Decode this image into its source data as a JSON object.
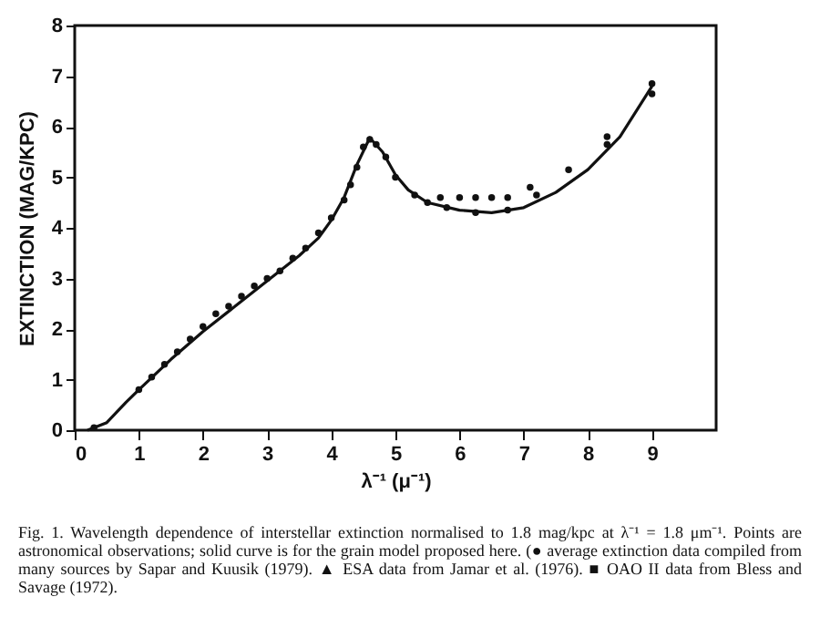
{
  "chart_data": {
    "type": "line",
    "xlabel": "λ⁻¹ (μ⁻¹)",
    "ylabel": "EXTINCTION (MAG/KPC)",
    "xlim": [
      0,
      10
    ],
    "ylim": [
      0,
      8
    ],
    "xticks": [
      0,
      1,
      2,
      3,
      4,
      5,
      6,
      7,
      8,
      9
    ],
    "yticks": [
      0,
      1,
      2,
      3,
      4,
      5,
      6,
      7,
      8
    ],
    "grid": false,
    "annotations": [
      "Fig. 1.  Wavelength dependence of interstellar extinction normalised to 1.8 mag/kpc at λ⁻¹ = 1.8 μm⁻¹. Points are astronomical observations; solid curve is for the grain model proposed here. (● average extinction data compiled from many sources by Sapar and Kuusik (1979). ▲ ESA data from Jamar et al. (1976). ■ OAO II data from Bless and Savage (1972)."
    ],
    "series": [
      {
        "color": "#111111",
        "line_style": "solid",
        "x": [
          0.2,
          0.5,
          0.8,
          1,
          1.5,
          2,
          2.5,
          3,
          3.5,
          3.8,
          4,
          4.2,
          4.4,
          4.6,
          4.8,
          5,
          5.2,
          5.5,
          6,
          6.5,
          7,
          7.5,
          8,
          8.5,
          9
        ],
        "values": [
          0,
          0.15,
          0.55,
          0.8,
          1.4,
          1.95,
          2.45,
          2.95,
          3.45,
          3.8,
          4.15,
          4.6,
          5.25,
          5.78,
          5.5,
          5.05,
          4.75,
          4.5,
          4.35,
          4.3,
          4.4,
          4.7,
          5.15,
          5.8,
          6.8
        ]
      },
      {
        "type": "scatter",
        "color": "#111111",
        "marker": "circle",
        "x": [
          0.3,
          1,
          1.2,
          1.4,
          1.6,
          1.8,
          2,
          2.2,
          2.4,
          2.6,
          2.8,
          3,
          3.2,
          3.4,
          3.6,
          3.8,
          4,
          4.2,
          4.3,
          4.4,
          4.5,
          4.6,
          4.7,
          4.85,
          5,
          5.3,
          5.5,
          5.7,
          5.8,
          6,
          6.25,
          6.25,
          6.5,
          6.75,
          6.75,
          7.1,
          7.2,
          7.7,
          8.3,
          8.3,
          9,
          9
        ],
        "values": [
          0.05,
          0.8,
          1.05,
          1.3,
          1.55,
          1.8,
          2.05,
          2.3,
          2.45,
          2.65,
          2.85,
          3,
          3.15,
          3.4,
          3.6,
          3.9,
          4.2,
          4.55,
          4.85,
          5.2,
          5.6,
          5.75,
          5.65,
          5.4,
          5,
          4.65,
          4.5,
          4.6,
          4.4,
          4.6,
          4.6,
          4.3,
          4.6,
          4.6,
          4.35,
          4.8,
          4.65,
          5.15,
          5.8,
          5.65,
          6.85,
          6.65
        ]
      }
    ]
  }
}
